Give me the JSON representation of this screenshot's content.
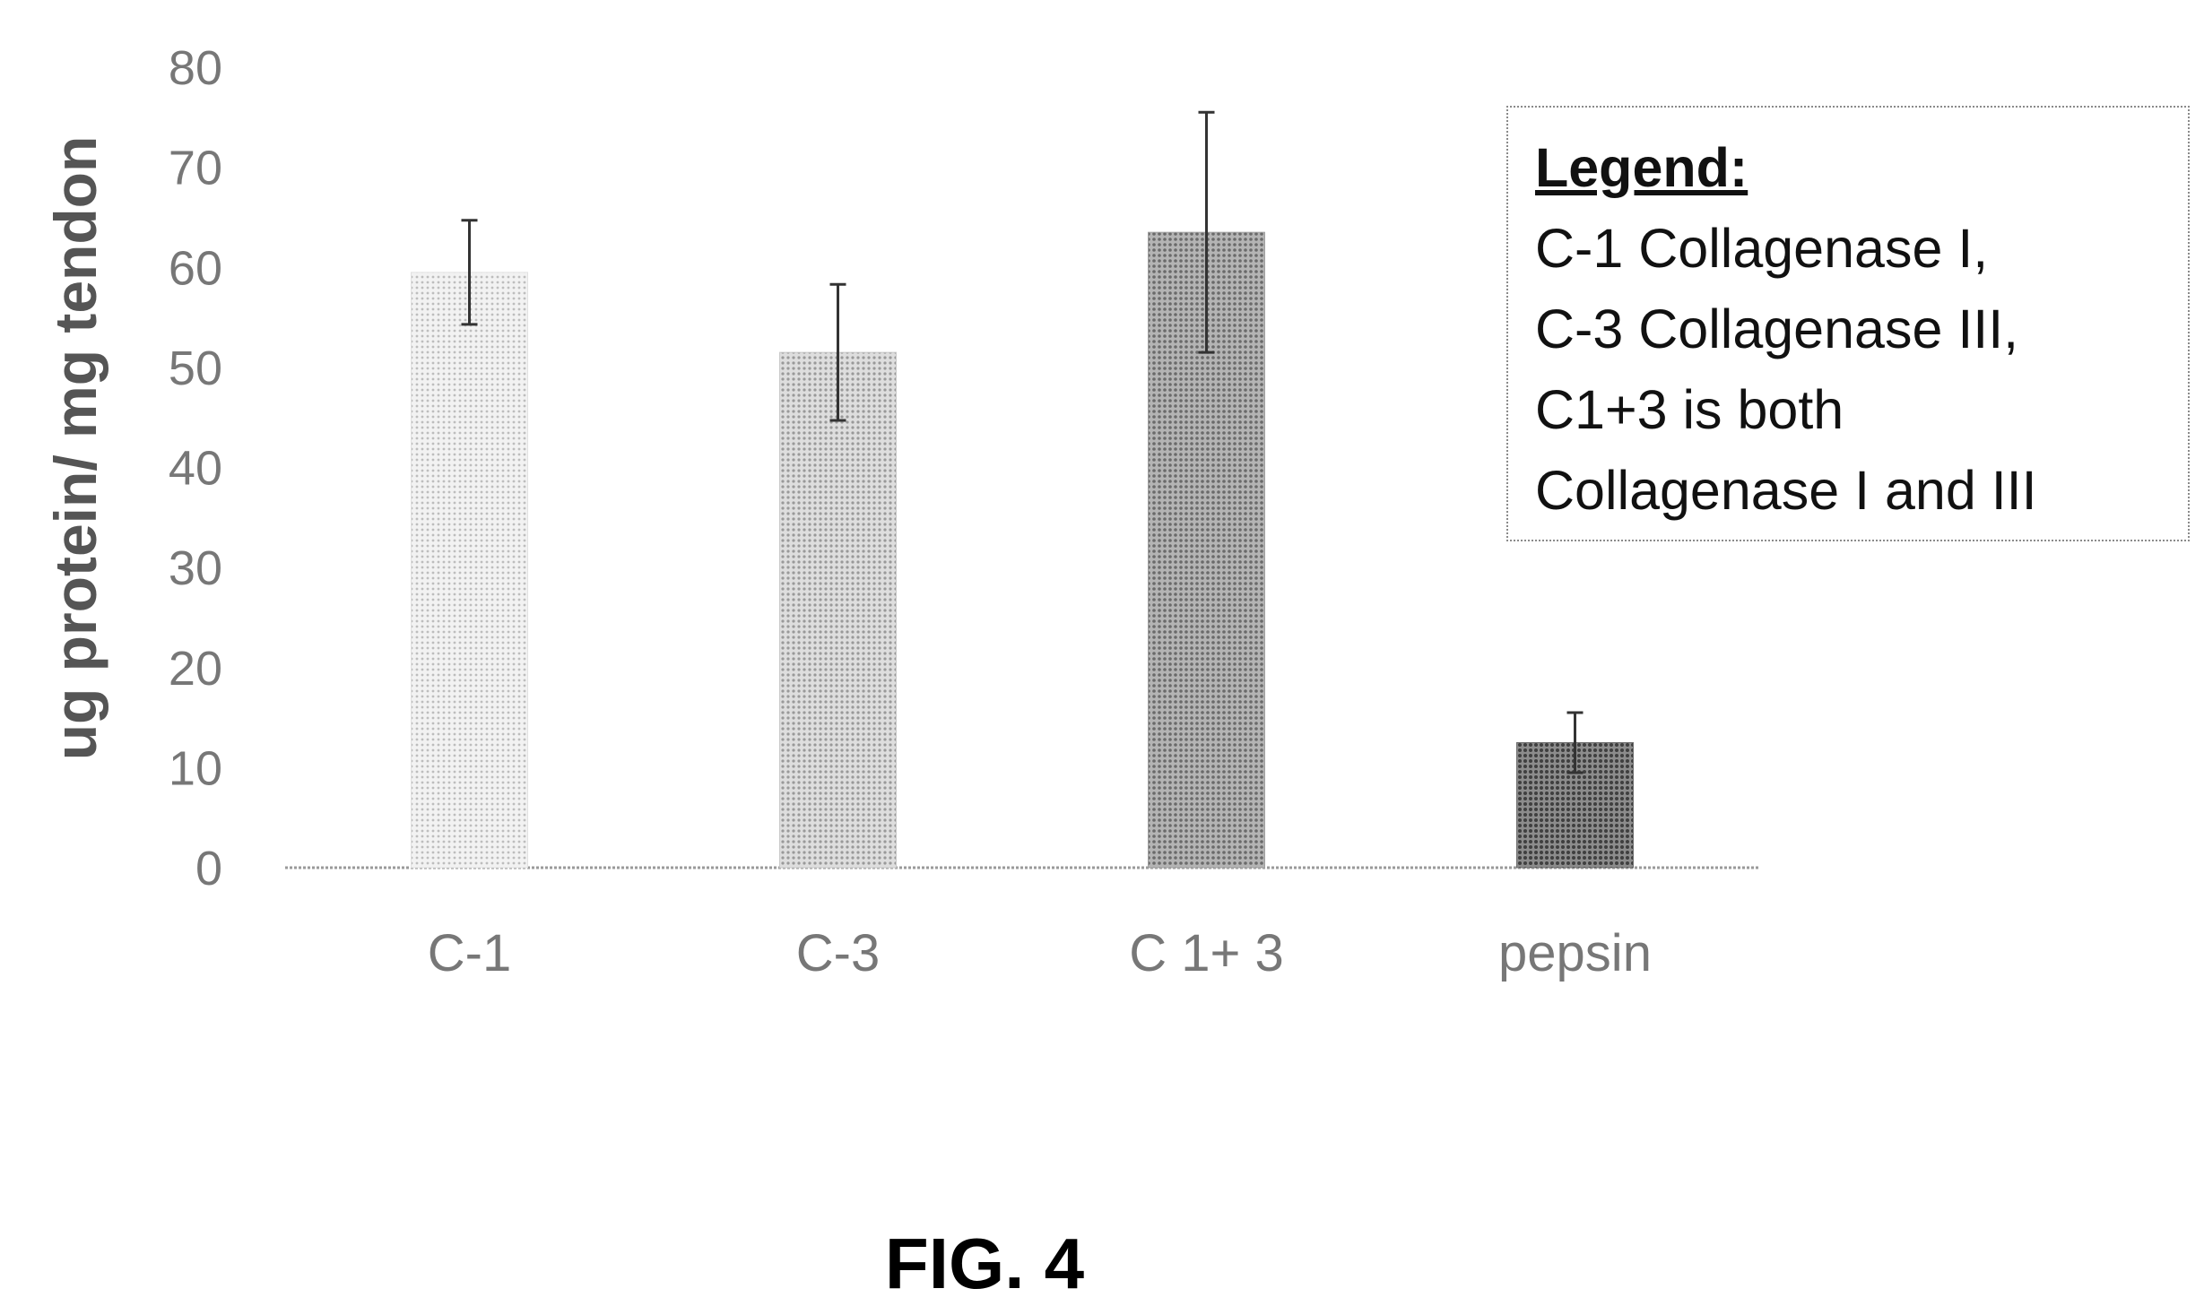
{
  "chart_data": {
    "type": "bar",
    "categories": [
      "C-1",
      "C-3",
      "C 1+ 3",
      "pepsin"
    ],
    "values": [
      59.5,
      51.5,
      63.5,
      12.5
    ],
    "errors": [
      5.2,
      6.8,
      12.0,
      3.0
    ],
    "ylabel": "ug protein/ mg tendon",
    "yticks": [
      0,
      10,
      20,
      30,
      40,
      50,
      60,
      70,
      80
    ],
    "ylim": [
      0,
      80
    ],
    "grid": false,
    "legend_position": "top-right",
    "bar_colors": [
      "#e2e2e2",
      "#c9c9c9",
      "#9f9f9f",
      "#6e6e6e"
    ],
    "legend": {
      "heading": "Legend:",
      "lines": [
        "C-1 Collagenase I,",
        "C-3 Collagenase III,",
        "C1+3 is both",
        "Collagenase I and III"
      ]
    }
  },
  "figure_label": "FIG. 4"
}
